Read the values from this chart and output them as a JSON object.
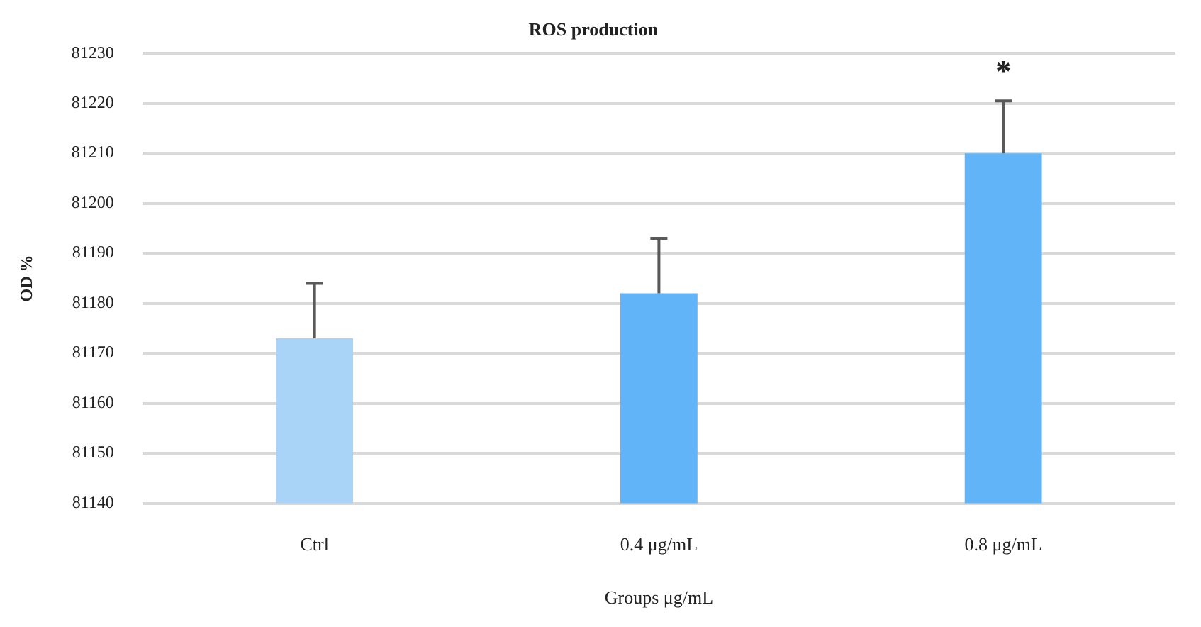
{
  "chart_data": {
    "type": "bar",
    "title": "ROS production",
    "xlabel": "Groups μg/mL",
    "ylabel": "OD %",
    "categories": [
      "Ctrl",
      "0.4 μg/mL",
      "0.8 μg/mL"
    ],
    "values": [
      81173,
      81182,
      81210
    ],
    "errors": [
      [
        81173,
        81184
      ],
      [
        81182,
        81193
      ],
      [
        81210,
        81220.5
      ]
    ],
    "colors": [
      "#a9d3f7",
      "#61b4f7",
      "#61b4f7"
    ],
    "ylim": [
      81140,
      81230
    ],
    "yticks": [
      81140,
      81150,
      81160,
      81170,
      81180,
      81190,
      81200,
      81210,
      81220,
      81230
    ],
    "grid": "y",
    "annotations": [
      "*"
    ]
  }
}
